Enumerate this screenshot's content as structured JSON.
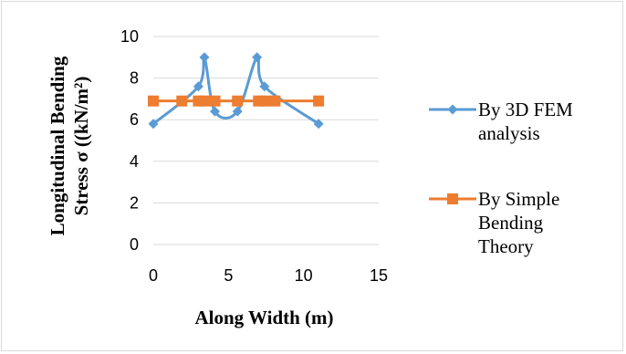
{
  "chart_data": {
    "type": "line",
    "title": "",
    "xlabel": "Along Width (m)",
    "ylabel": "Longitudinal Bending Stress σ ((kN/m²)",
    "ylabel_lines": [
      "Longitudinal Bending",
      "Stress σ ((kN/m²)"
    ],
    "xlim": [
      0,
      15
    ],
    "ylim": [
      0,
      10
    ],
    "x_ticks": [
      "0",
      "5",
      "10",
      "15"
    ],
    "y_ticks": [
      "0",
      "2",
      "4",
      "6",
      "8",
      "10"
    ],
    "grid": "horizontal major gridlines",
    "legend_position": "right",
    "series": [
      {
        "name": "By 3D FEM analysis",
        "name_lines": [
          "By 3D FEM",
          "analysis"
        ],
        "color": "#5b9bd5",
        "marker": "diamond",
        "smooth": true,
        "points": [
          {
            "x": 0,
            "y": 5.8
          },
          {
            "x": 3.0,
            "y": 7.6
          },
          {
            "x": 3.4,
            "y": 9.0
          },
          {
            "x": 4.1,
            "y": 6.4
          },
          {
            "x": 5.6,
            "y": 6.4
          },
          {
            "x": 6.9,
            "y": 9.0
          },
          {
            "x": 7.4,
            "y": 7.6
          },
          {
            "x": 11.0,
            "y": 5.8
          }
        ]
      },
      {
        "name": "By Simple Bending Theory",
        "name_lines": [
          "By Simple",
          "Bending",
          "Theory"
        ],
        "color": "#ed7d31",
        "marker": "square",
        "smooth": false,
        "points": [
          {
            "x": 0,
            "y": 6.9
          },
          {
            "x": 1.9,
            "y": 6.9
          },
          {
            "x": 3.0,
            "y": 6.9
          },
          {
            "x": 3.4,
            "y": 6.9
          },
          {
            "x": 4.1,
            "y": 6.9
          },
          {
            "x": 5.6,
            "y": 6.9
          },
          {
            "x": 7.0,
            "y": 6.9
          },
          {
            "x": 7.4,
            "y": 6.9
          },
          {
            "x": 8.1,
            "y": 6.9
          },
          {
            "x": 11.0,
            "y": 6.9
          }
        ]
      }
    ]
  }
}
